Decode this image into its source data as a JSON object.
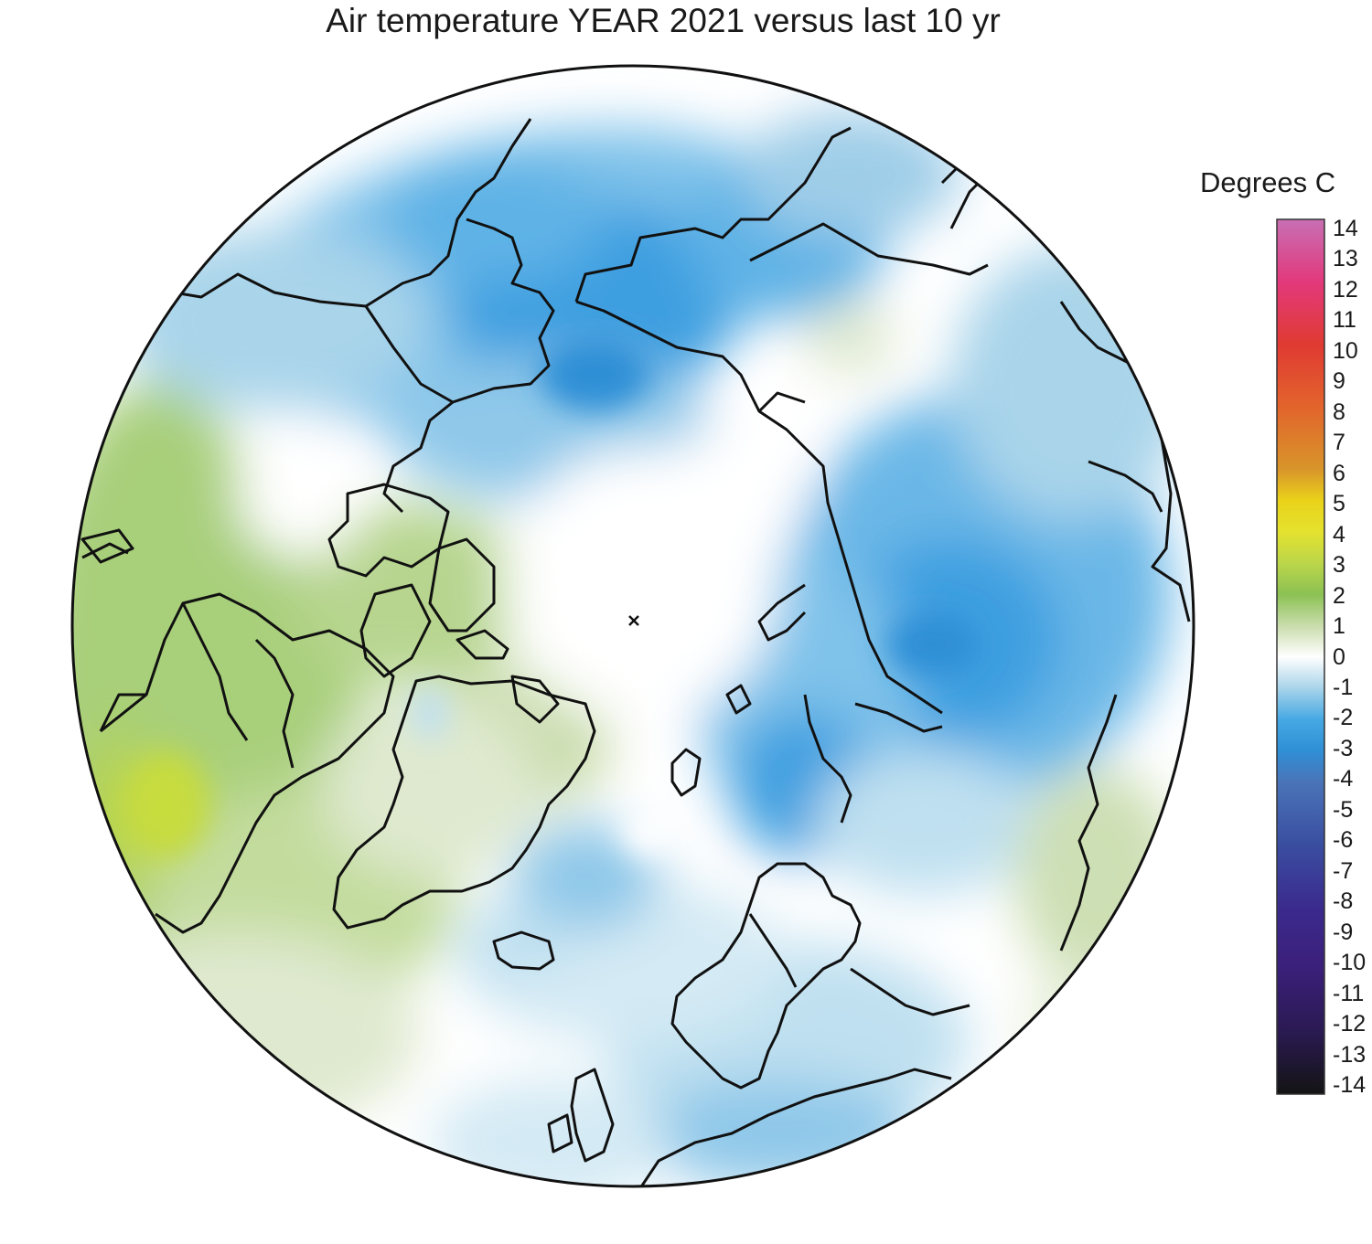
{
  "title": "Air temperature YEAR 2021 versus last 10 yr",
  "colorbar": {
    "units": "Degrees C",
    "min": -14,
    "max": 14,
    "ticks": [
      "14",
      "13",
      "12",
      "11",
      "10",
      "9",
      "8",
      "7",
      "6",
      "5",
      "4",
      "3",
      "2",
      "1",
      "0",
      "-1",
      "-2",
      "-3",
      "-4",
      "-5",
      "-6",
      "-7",
      "-8",
      "-9",
      "-10",
      "-11",
      "-12",
      "-13",
      "-14"
    ],
    "stops": [
      {
        "value": 14,
        "color": "#c86fb4"
      },
      {
        "value": 12,
        "color": "#e2397c"
      },
      {
        "value": 10,
        "color": "#e03a32"
      },
      {
        "value": 8,
        "color": "#e2642c"
      },
      {
        "value": 6,
        "color": "#d8952a"
      },
      {
        "value": 5,
        "color": "#ead21a"
      },
      {
        "value": 4,
        "color": "#e4e22e"
      },
      {
        "value": 3,
        "color": "#bcd64a"
      },
      {
        "value": 2,
        "color": "#8bc153"
      },
      {
        "value": 1,
        "color": "#c9dcab"
      },
      {
        "value": 0,
        "color": "#ffffff"
      },
      {
        "value": -1,
        "color": "#a9d4ea"
      },
      {
        "value": -2,
        "color": "#46a9e3"
      },
      {
        "value": -3,
        "color": "#2f8fd6"
      },
      {
        "value": -4,
        "color": "#4a74b8"
      },
      {
        "value": -6,
        "color": "#3a4ea0"
      },
      {
        "value": -8,
        "color": "#3b2b8e"
      },
      {
        "value": -10,
        "color": "#3b1f79"
      },
      {
        "value": -12,
        "color": "#2a1a52"
      },
      {
        "value": -14,
        "color": "#141414"
      }
    ]
  },
  "map": {
    "projection": "north polar stereographic",
    "pole_marker": "x-mark",
    "anomaly_colors": {
      "strong_negative": "#3e9fe0",
      "negative": "#7fc2ea",
      "weak_negative": "#bfe0f0",
      "neutral": "#ffffff",
      "weak_positive": "#dfe9cf",
      "positive": "#b5d38f",
      "strong_positive": "#8fc160",
      "max_positive": "#c2d94c"
    }
  }
}
